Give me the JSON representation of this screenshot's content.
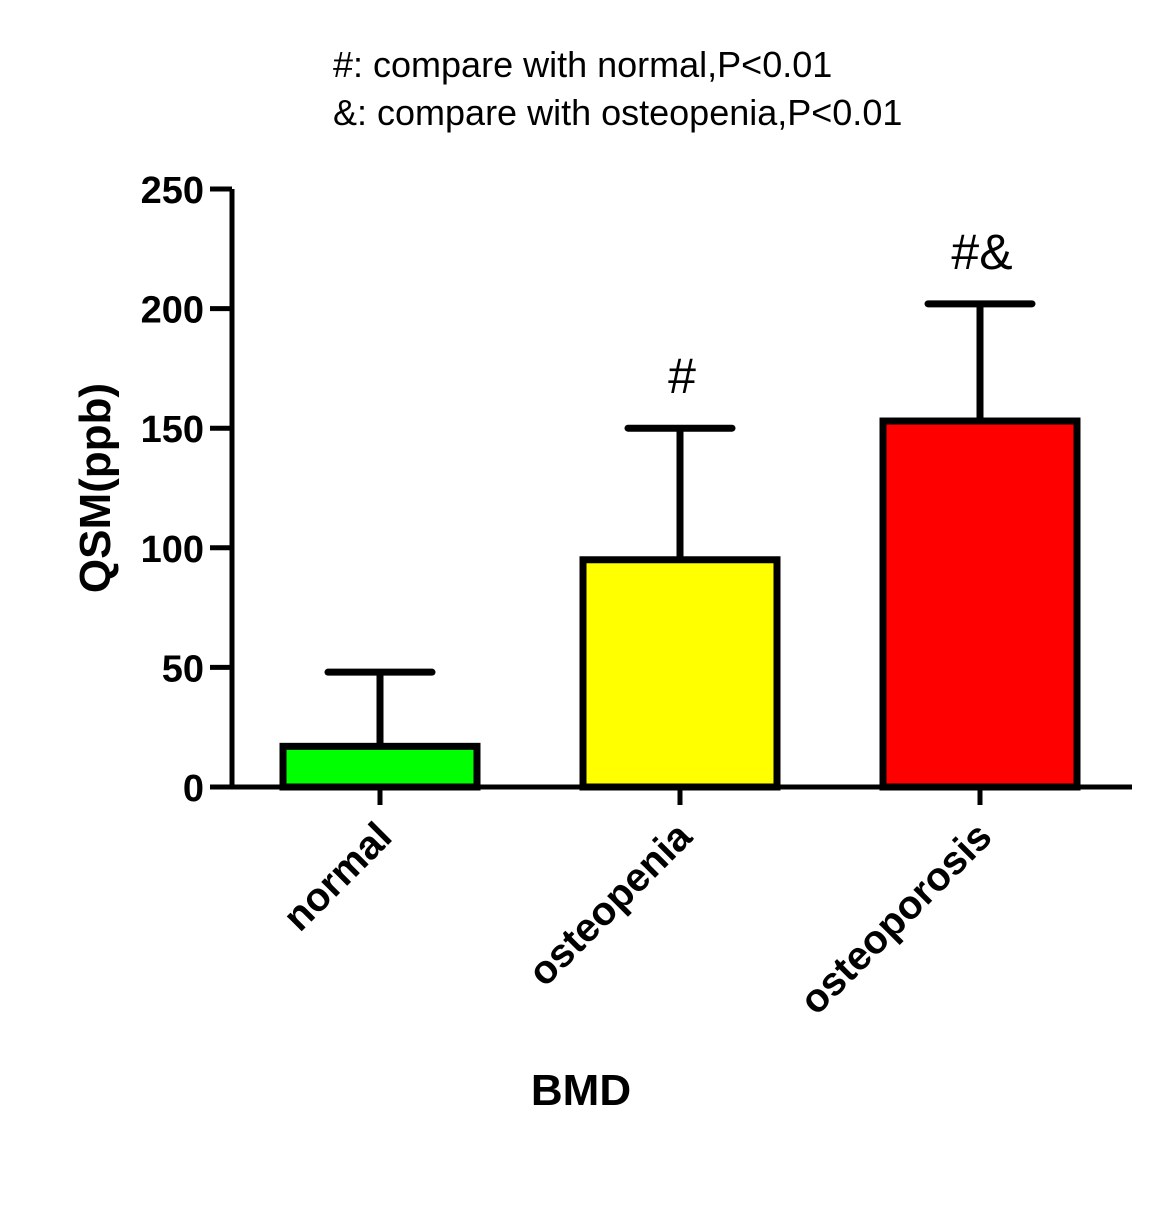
{
  "chart_data": {
    "type": "bar",
    "title": "",
    "annotations_legend": [
      "#: compare with normal,P<0.01",
      "&: compare with osteopenia,P<0.01"
    ],
    "categories": [
      "normal",
      "osteopenia",
      "osteoporosis"
    ],
    "values": [
      17,
      95,
      153
    ],
    "error_upper": [
      48,
      150,
      202
    ],
    "bar_colors": [
      "#00ff00",
      "#ffff00",
      "#ff0000"
    ],
    "significance": [
      "",
      "#",
      "#&"
    ],
    "xlabel": "BMD",
    "ylabel": "QSM(ppb)",
    "ylim": [
      0,
      250
    ],
    "yticks": [
      0,
      50,
      100,
      150,
      200,
      250
    ],
    "grid": false
  }
}
